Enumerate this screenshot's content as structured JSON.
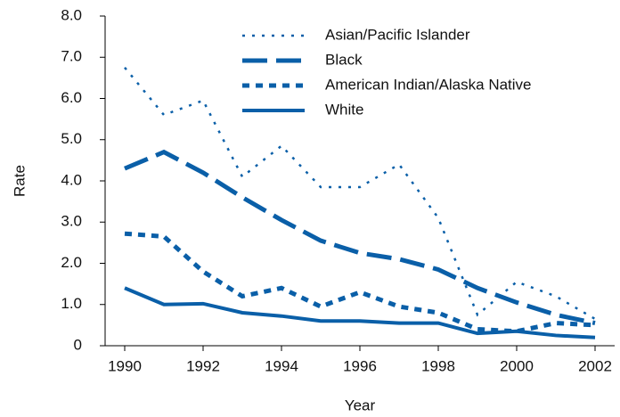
{
  "chart_data": {
    "type": "line",
    "x_label": "Year",
    "y_label": "Rate",
    "x": [
      1990,
      1991,
      1992,
      1993,
      1994,
      1995,
      1996,
      1997,
      1998,
      1999,
      2000,
      2001,
      2002
    ],
    "xlim": [
      1989.5,
      2002.5
    ],
    "xticks": [
      1990,
      1992,
      1994,
      1996,
      1998,
      2000,
      2002
    ],
    "ylim": [
      0,
      8
    ],
    "yticks": [
      0,
      {
        "value": 1,
        "label": "1.0"
      },
      {
        "value": 2,
        "label": "2.0"
      },
      {
        "value": 3,
        "label": "3.0"
      },
      {
        "value": 4,
        "label": "4.0"
      },
      {
        "value": 5,
        "label": "5.0"
      },
      {
        "value": 6,
        "label": "6.0"
      },
      {
        "value": 7,
        "label": "7.0"
      },
      {
        "value": 8,
        "label": "8.0"
      }
    ],
    "legend": "top-right",
    "series": [
      {
        "name": "Asian/Pacific Islander",
        "color": "#0a5fa8",
        "line_style": "dotted",
        "values": [
          6.75,
          5.6,
          5.95,
          4.1,
          4.85,
          3.85,
          3.85,
          4.4,
          3.1,
          0.75,
          1.55,
          1.2,
          0.65
        ]
      },
      {
        "name": "Black",
        "color": "#0a5fa8",
        "line_style": "long-dash",
        "values": [
          4.3,
          4.7,
          4.2,
          3.6,
          3.05,
          2.55,
          2.25,
          2.1,
          1.85,
          1.4,
          1.05,
          0.75,
          0.55
        ]
      },
      {
        "name": "American Indian/Alaska Native",
        "color": "#0a5fa8",
        "line_style": "dashed",
        "values": [
          2.72,
          2.65,
          1.8,
          1.2,
          1.4,
          0.95,
          1.3,
          0.95,
          0.8,
          0.4,
          0.35,
          0.55,
          0.5
        ]
      },
      {
        "name": "White",
        "color": "#0a5fa8",
        "line_style": "solid",
        "values": [
          1.4,
          1.0,
          1.02,
          0.8,
          0.72,
          0.6,
          0.6,
          0.55,
          0.55,
          0.3,
          0.35,
          0.25,
          0.2
        ]
      }
    ]
  }
}
